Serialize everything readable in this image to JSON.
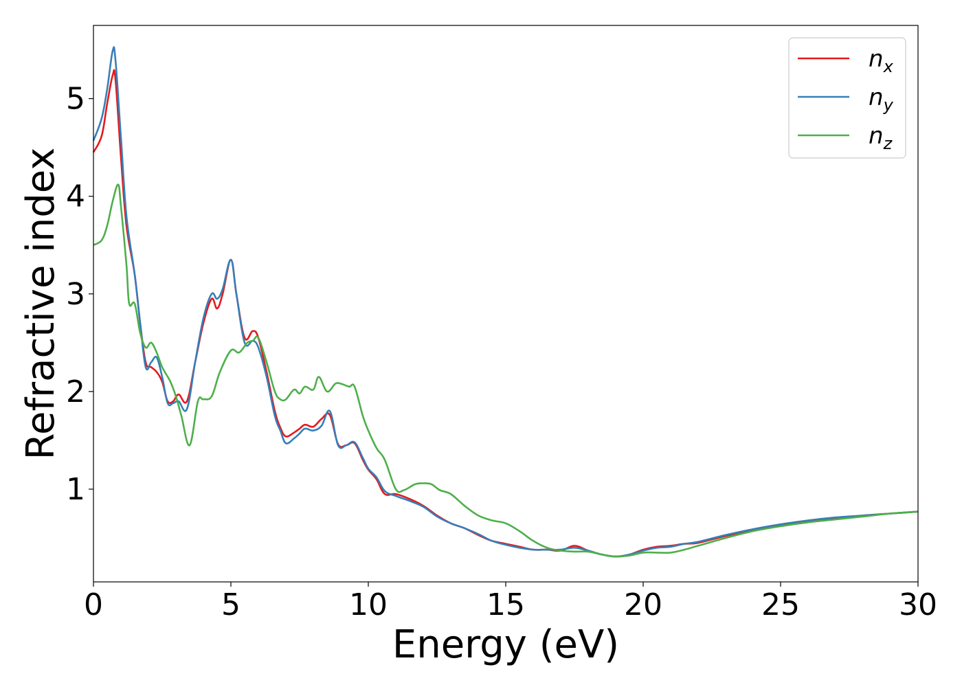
{
  "chart_data": {
    "type": "line",
    "xlabel": "Energy (eV)",
    "ylabel": "Refractive index",
    "xlim": [
      0,
      30
    ],
    "ylim": [
      0.05,
      5.75
    ],
    "xticks": [
      0,
      5,
      10,
      15,
      20,
      25,
      30
    ],
    "yticks": [
      1,
      2,
      3,
      4,
      5
    ],
    "grid": false,
    "legend_position": "top-right",
    "series": [
      {
        "name": "n_x",
        "label_main": "n",
        "label_sub": "x",
        "color": "#e41a1c",
        "x": [
          0,
          0.3,
          0.5,
          0.7,
          0.8,
          1.0,
          1.2,
          1.5,
          1.7,
          1.9,
          2.1,
          2.3,
          2.5,
          2.7,
          2.9,
          3.1,
          3.4,
          3.7,
          4.0,
          4.3,
          4.5,
          4.7,
          5.0,
          5.2,
          5.5,
          5.8,
          6.0,
          6.3,
          6.6,
          6.8,
          7.0,
          7.3,
          7.5,
          7.7,
          8.0,
          8.3,
          8.6,
          8.9,
          9.2,
          9.5,
          9.8,
          10.0,
          10.3,
          10.6,
          11.0,
          11.5,
          12.0,
          12.5,
          13.0,
          13.5,
          14.0,
          14.5,
          15.0,
          15.5,
          16.0,
          16.5,
          17.0,
          17.5,
          18.0,
          18.5,
          19.0,
          19.5,
          20.0,
          20.5,
          21.0,
          21.5,
          22.0,
          23.0,
          24.0,
          25.0,
          26.0,
          27.0,
          28.0,
          29.0,
          30.0
        ],
        "y": [
          4.45,
          4.62,
          4.95,
          5.24,
          5.2,
          4.4,
          3.7,
          3.2,
          2.7,
          2.3,
          2.25,
          2.2,
          2.1,
          1.9,
          1.9,
          1.97,
          1.9,
          2.3,
          2.7,
          2.95,
          2.85,
          3.0,
          3.35,
          3.0,
          2.55,
          2.62,
          2.55,
          2.2,
          1.8,
          1.63,
          1.54,
          1.58,
          1.62,
          1.66,
          1.64,
          1.72,
          1.76,
          1.46,
          1.45,
          1.47,
          1.3,
          1.2,
          1.1,
          0.95,
          0.95,
          0.9,
          0.83,
          0.73,
          0.65,
          0.6,
          0.53,
          0.47,
          0.44,
          0.41,
          0.38,
          0.38,
          0.37,
          0.42,
          0.37,
          0.33,
          0.31,
          0.33,
          0.38,
          0.41,
          0.42,
          0.44,
          0.45,
          0.52,
          0.58,
          0.63,
          0.67,
          0.7,
          0.73,
          0.75,
          0.77
        ]
      },
      {
        "name": "n_y",
        "label_main": "n",
        "label_sub": "y",
        "color": "#377eb8",
        "x": [
          0,
          0.3,
          0.5,
          0.7,
          0.8,
          1.0,
          1.2,
          1.5,
          1.7,
          1.9,
          2.1,
          2.3,
          2.5,
          2.7,
          2.9,
          3.1,
          3.4,
          3.7,
          4.0,
          4.3,
          4.5,
          4.7,
          5.0,
          5.2,
          5.5,
          5.8,
          6.0,
          6.3,
          6.6,
          6.8,
          7.0,
          7.3,
          7.5,
          7.7,
          8.0,
          8.3,
          8.6,
          8.9,
          9.2,
          9.5,
          9.8,
          10.0,
          10.3,
          10.6,
          11.0,
          11.5,
          12.0,
          12.5,
          13.0,
          13.5,
          14.0,
          14.5,
          15.0,
          15.5,
          16.0,
          16.5,
          17.0,
          17.5,
          18.0,
          18.5,
          19.0,
          19.5,
          20.0,
          20.5,
          21.0,
          21.5,
          22.0,
          23.0,
          24.0,
          25.0,
          26.0,
          27.0,
          28.0,
          29.0,
          30.0
        ],
        "y": [
          4.57,
          4.8,
          5.1,
          5.49,
          5.4,
          4.6,
          3.8,
          3.2,
          2.7,
          2.25,
          2.3,
          2.35,
          2.15,
          1.88,
          1.88,
          1.9,
          1.82,
          2.3,
          2.75,
          3.0,
          2.95,
          3.05,
          3.35,
          3.0,
          2.5,
          2.52,
          2.45,
          2.15,
          1.75,
          1.6,
          1.47,
          1.52,
          1.57,
          1.62,
          1.6,
          1.65,
          1.8,
          1.45,
          1.45,
          1.48,
          1.32,
          1.21,
          1.12,
          0.98,
          0.93,
          0.88,
          0.82,
          0.72,
          0.65,
          0.6,
          0.54,
          0.47,
          0.43,
          0.4,
          0.38,
          0.38,
          0.38,
          0.4,
          0.37,
          0.33,
          0.31,
          0.33,
          0.37,
          0.4,
          0.41,
          0.44,
          0.46,
          0.53,
          0.59,
          0.64,
          0.68,
          0.71,
          0.73,
          0.75,
          0.77
        ]
      },
      {
        "name": "n_z",
        "label_main": "n",
        "label_sub": "z",
        "color": "#4daf4a",
        "x": [
          0,
          0.3,
          0.5,
          0.7,
          0.9,
          1.0,
          1.2,
          1.3,
          1.5,
          1.7,
          1.9,
          2.1,
          2.3,
          2.5,
          2.8,
          3.0,
          3.2,
          3.5,
          3.8,
          4.0,
          4.3,
          4.6,
          5.0,
          5.3,
          5.6,
          5.8,
          6.0,
          6.3,
          6.6,
          6.8,
          7.0,
          7.3,
          7.5,
          7.7,
          8.0,
          8.2,
          8.5,
          8.8,
          9.0,
          9.3,
          9.5,
          9.8,
          10.0,
          10.3,
          10.6,
          11.0,
          11.3,
          11.7,
          12.0,
          12.3,
          12.6,
          13.0,
          13.5,
          14.0,
          14.5,
          15.0,
          15.5,
          16.0,
          16.5,
          17.0,
          17.5,
          18.0,
          18.5,
          19.0,
          19.5,
          20.0,
          20.5,
          21.0,
          21.5,
          22.0,
          23.0,
          24.0,
          25.0,
          26.0,
          27.0,
          28.0,
          29.0,
          30.0
        ],
        "y": [
          3.5,
          3.55,
          3.7,
          3.95,
          4.12,
          3.9,
          3.3,
          2.9,
          2.9,
          2.6,
          2.45,
          2.5,
          2.4,
          2.25,
          2.1,
          1.95,
          1.75,
          1.45,
          1.9,
          1.92,
          1.95,
          2.2,
          2.42,
          2.4,
          2.5,
          2.52,
          2.55,
          2.3,
          2.0,
          1.92,
          1.92,
          2.02,
          1.98,
          2.05,
          2.02,
          2.15,
          2.0,
          2.08,
          2.08,
          2.05,
          2.05,
          1.75,
          1.6,
          1.42,
          1.3,
          1.0,
          0.99,
          1.05,
          1.06,
          1.05,
          0.99,
          0.95,
          0.83,
          0.73,
          0.68,
          0.65,
          0.57,
          0.47,
          0.4,
          0.37,
          0.36,
          0.36,
          0.33,
          0.31,
          0.32,
          0.35,
          0.35,
          0.35,
          0.38,
          0.42,
          0.5,
          0.57,
          0.62,
          0.66,
          0.69,
          0.72,
          0.75,
          0.77
        ]
      }
    ]
  }
}
